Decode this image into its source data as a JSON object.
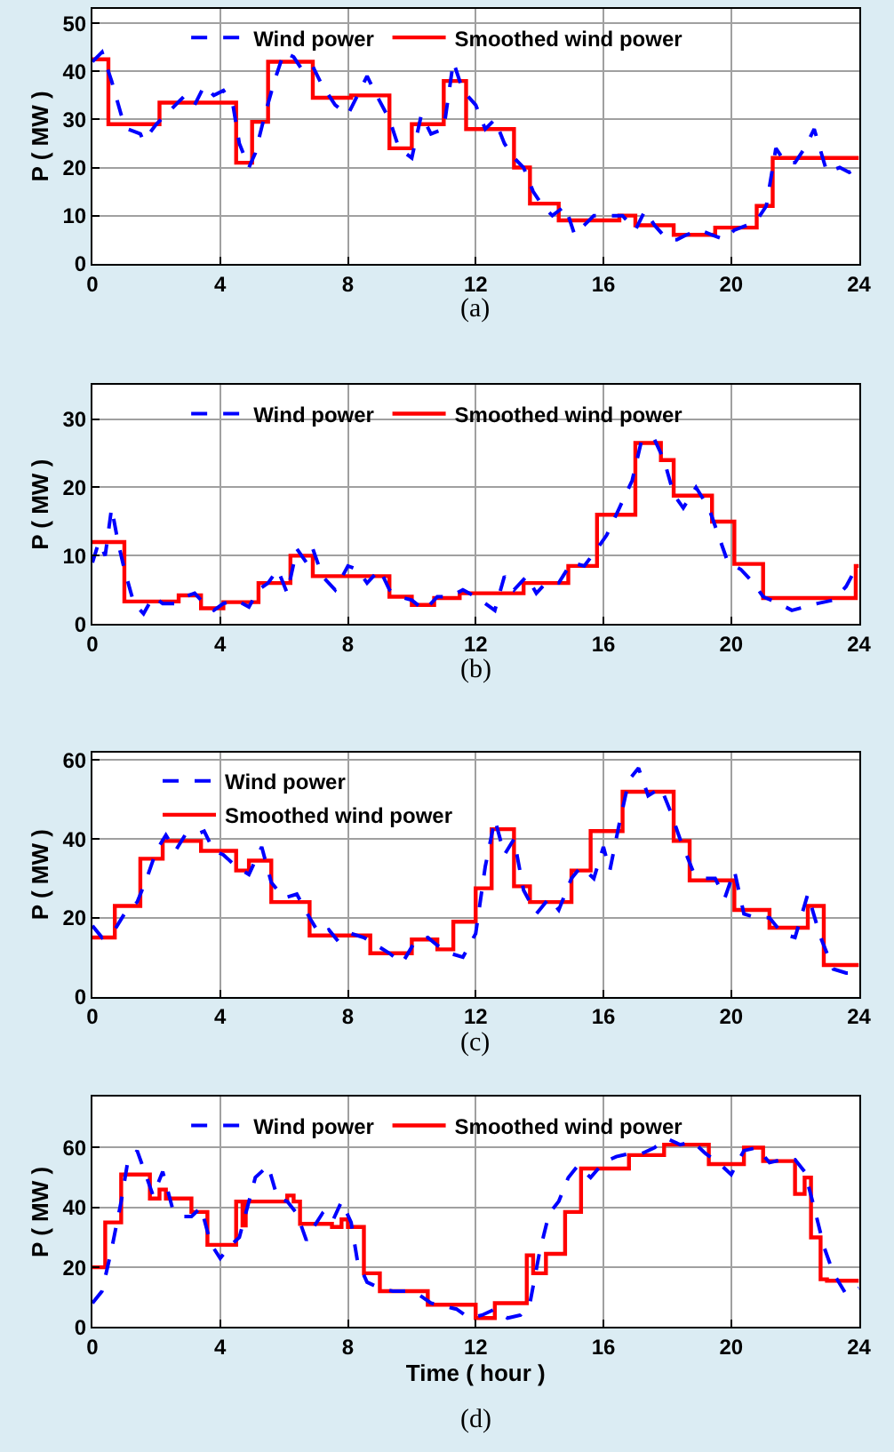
{
  "chart_data": [
    {
      "type": "line",
      "ylabel": "P ( MW )",
      "annotations": [
        "(a)"
      ],
      "xlim": [
        0,
        24
      ],
      "xticks": [
        0,
        4,
        8,
        12,
        16,
        20,
        24
      ],
      "ylim": [
        0,
        53
      ],
      "yticks": [
        0,
        10,
        20,
        30,
        40,
        50
      ],
      "grid": true,
      "legend": "top",
      "series": [
        {
          "name": "Wind power",
          "color": "#0000ff",
          "line_style": "dashed",
          "x": [
            0,
            0.3,
            0.6,
            0.9,
            1.1,
            1.5,
            1.6,
            2,
            2.3,
            2.6,
            2.9,
            3.2,
            3.5,
            3.8,
            4.1,
            4.4,
            4.6,
            4.9,
            5.1,
            5.4,
            5.7,
            6.0,
            6.3,
            6.6,
            6.9,
            7.2,
            7.6,
            8,
            8.3,
            8.6,
            8.9,
            9.3,
            9.6,
            10.0,
            10.3,
            10.6,
            11.0,
            11.3,
            11.6,
            12.0,
            12.3,
            12.6,
            12.9,
            13.2,
            13.5,
            13.8,
            14.1,
            14.4,
            14.8,
            15.1,
            15.4,
            15.7,
            16.0,
            16.3,
            16.6,
            17.0,
            17.3,
            17.6,
            18.0,
            18.3,
            18.6,
            19.0,
            19.4,
            19.8,
            20.1,
            20.5,
            20.8,
            21.1,
            21.4,
            21.7,
            22.0,
            22.3,
            22.6,
            23.0,
            23.4,
            23.7,
            24
          ],
          "values": [
            42,
            44,
            38,
            31,
            28,
            27,
            25.5,
            29,
            31,
            33,
            35,
            33,
            37,
            35,
            36,
            33,
            25,
            20,
            23,
            31,
            38,
            44,
            43,
            40,
            41,
            37,
            33,
            31,
            35,
            39,
            35,
            30,
            24,
            22,
            31,
            27,
            28,
            42,
            36,
            33,
            28,
            30,
            25,
            22,
            20,
            15,
            12,
            10,
            12,
            6,
            8,
            10,
            10,
            10,
            10,
            7,
            11,
            8,
            5,
            5,
            6,
            7,
            6,
            5,
            7,
            8,
            9,
            12,
            24,
            21,
            21,
            24,
            28,
            19,
            20,
            19,
            20
          ]
        },
        {
          "name": "Smoothed wind power",
          "color": "#ff0000",
          "type": "step",
          "line_style": "solid",
          "x": [
            0,
            0.5,
            2.1,
            4.5,
            5.0,
            5.5,
            6.9,
            8.1,
            9.3,
            10.0,
            11.0,
            11.7,
            13.2,
            13.7,
            14.6,
            16.5,
            17.0,
            18.2,
            19.5,
            20.8,
            21.3,
            24
          ],
          "values": [
            42.5,
            29,
            33.5,
            21,
            29.5,
            42,
            34.5,
            35,
            24,
            29,
            38,
            28,
            20,
            12.5,
            9,
            10,
            8,
            6,
            7.5,
            12,
            22,
            22
          ]
        }
      ]
    },
    {
      "type": "line",
      "ylabel": "P ( MW )",
      "annotations": [
        "(b)"
      ],
      "xlim": [
        0,
        24
      ],
      "xticks": [
        0,
        4,
        8,
        12,
        16,
        20,
        24
      ],
      "ylim": [
        0,
        35
      ],
      "yticks": [
        0,
        10,
        20,
        30
      ],
      "grid": true,
      "legend": "top",
      "series": [
        {
          "name": "Wind power",
          "color": "#0000ff",
          "line_style": "dashed",
          "x": [
            0,
            0.2,
            0.4,
            0.6,
            0.8,
            1.0,
            1.3,
            1.6,
            1.9,
            2.2,
            2.6,
            2.9,
            3.2,
            3.5,
            3.8,
            4.1,
            4.5,
            4.9,
            5.2,
            5.5,
            5.8,
            6.1,
            6.4,
            6.7,
            6.9,
            7.2,
            7.6,
            8.0,
            8.3,
            8.6,
            9.0,
            9.3,
            9.6,
            10.0,
            10.4,
            10.8,
            11.2,
            11.6,
            12.0,
            12.3,
            12.6,
            12.9,
            13.2,
            13.6,
            13.9,
            14.2,
            14.6,
            15.0,
            15.4,
            15.8,
            16.1,
            16.5,
            16.9,
            17.2,
            17.6,
            17.9,
            18.2,
            18.5,
            18.9,
            19.3,
            19.6,
            19.9,
            20.3,
            20.7,
            21.0,
            21.5,
            21.9,
            22.3,
            22.7,
            23.2,
            23.6,
            24
          ],
          "values": [
            9,
            12,
            10,
            17,
            12,
            8,
            3,
            1.5,
            4,
            3,
            3,
            4,
            4.5,
            3,
            2,
            3,
            3.5,
            2.5,
            5,
            6,
            8,
            4.5,
            11,
            9,
            11,
            7,
            5,
            8.5,
            8,
            6,
            8,
            5,
            4,
            3.5,
            2,
            4,
            4,
            5,
            4,
            3,
            2,
            7,
            5,
            7,
            4.5,
            6,
            6,
            9,
            8.5,
            11,
            13,
            17,
            21,
            27,
            27,
            24,
            19,
            17,
            20,
            17,
            13,
            9,
            8,
            6,
            4,
            3,
            2,
            2.5,
            3,
            3.5,
            5.5,
            9
          ]
        },
        {
          "name": "Smoothed wind power",
          "color": "#ff0000",
          "type": "step",
          "line_style": "solid",
          "x": [
            0,
            1.0,
            2.7,
            3.4,
            4.1,
            5.2,
            6.2,
            6.9,
            9.3,
            10.0,
            10.7,
            11.5,
            13.5,
            14.9,
            15.8,
            17.0,
            17.8,
            18.2,
            19.4,
            20.1,
            21.0,
            23.9,
            24
          ],
          "values": [
            12,
            3.3,
            4.2,
            2.3,
            3.2,
            6,
            10,
            7,
            4,
            2.8,
            3.8,
            4.5,
            6,
            8.5,
            16,
            26.5,
            24,
            18.8,
            15,
            8.8,
            3.8,
            8.5,
            8.5
          ]
        }
      ]
    },
    {
      "type": "line",
      "ylabel": "P ( MW )",
      "annotations": [
        "(c)"
      ],
      "xlim": [
        0,
        24
      ],
      "xticks": [
        0,
        4,
        8,
        12,
        16,
        20,
        24
      ],
      "ylim": [
        0,
        62
      ],
      "yticks": [
        0,
        20,
        40,
        60
      ],
      "grid": true,
      "legend": "top left",
      "series": [
        {
          "name": "Wind power",
          "color": "#0000ff",
          "line_style": "dashed",
          "x": [
            0,
            0.3,
            0.7,
            1.0,
            1.4,
            1.7,
            2.0,
            2.3,
            2.6,
            2.9,
            3.2,
            3.5,
            3.8,
            4.1,
            4.5,
            4.9,
            5.3,
            5.6,
            6.0,
            6.4,
            6.8,
            7.1,
            7.4,
            7.7,
            8.1,
            8.5,
            8.9,
            9.3,
            9.7,
            10.1,
            10.5,
            10.8,
            11.2,
            11.6,
            12.0,
            12.3,
            12.6,
            12.9,
            13.2,
            13.5,
            13.9,
            14.3,
            14.6,
            15.0,
            15.3,
            15.7,
            16.0,
            16.2,
            16.5,
            16.8,
            17.1,
            17.4,
            17.8,
            18.1,
            18.4,
            18.8,
            19.1,
            19.5,
            19.8,
            20.1,
            20.4,
            20.8,
            21.2,
            21.6,
            22.0,
            22.4,
            22.8,
            23.2,
            23.6,
            24
          ],
          "values": [
            18,
            15,
            17,
            21,
            24,
            30,
            37,
            41,
            37,
            41,
            41,
            42,
            37,
            36,
            33,
            31,
            38,
            29,
            25,
            26,
            20,
            16,
            17,
            14,
            16,
            15,
            13,
            11,
            8.5,
            14,
            15,
            13,
            11,
            10,
            16,
            33,
            45,
            36,
            40,
            27,
            21,
            25,
            22,
            30,
            33,
            30,
            38,
            32,
            44,
            55,
            58,
            51,
            53,
            47,
            40,
            32,
            30,
            30,
            25,
            32,
            21,
            20,
            20,
            16,
            15,
            26,
            15,
            7,
            6,
            6
          ]
        },
        {
          "name": "Smoothed wind power",
          "color": "#ff0000",
          "type": "step",
          "line_style": "solid",
          "x": [
            0,
            0.7,
            1.5,
            2.2,
            3.4,
            4.5,
            4.9,
            5.6,
            6.8,
            8.7,
            10.0,
            10.8,
            11.3,
            12.0,
            12.5,
            13.2,
            13.7,
            15.0,
            15.6,
            16.6,
            18.2,
            18.7,
            20.1,
            21.2,
            22.4,
            22.9,
            24
          ],
          "values": [
            15,
            23,
            35,
            39.5,
            37,
            32,
            34.5,
            24,
            15.5,
            11,
            14.5,
            12,
            19,
            27.5,
            42.5,
            28,
            24,
            32,
            42,
            52,
            39.5,
            29.5,
            22,
            17.5,
            23,
            8,
            8
          ]
        }
      ]
    },
    {
      "type": "line",
      "ylabel": "P ( MW )",
      "xlabel": "Time ( hour )",
      "annotations": [
        "(d)"
      ],
      "xlim": [
        0,
        24
      ],
      "xticks": [
        0,
        4,
        8,
        12,
        16,
        20,
        24
      ],
      "ylim": [
        0,
        77
      ],
      "yticks": [
        0,
        20,
        40,
        60
      ],
      "grid": true,
      "legend": "top",
      "series": [
        {
          "name": "Wind power",
          "color": "#0000ff",
          "line_style": "dashed",
          "x": [
            0,
            0.3,
            0.6,
            0.9,
            1.1,
            1.4,
            1.7,
            1.9,
            2.2,
            2.5,
            2.8,
            3.1,
            3.4,
            3.7,
            4.0,
            4.3,
            4.6,
            4.9,
            5.1,
            5.5,
            5.8,
            6.1,
            6.4,
            6.7,
            6.9,
            7.2,
            7.5,
            7.8,
            8.1,
            8.3,
            8.6,
            9.0,
            9.4,
            9.8,
            10.2,
            10.6,
            11.0,
            11.4,
            11.8,
            12.2,
            12.6,
            13.0,
            13.4,
            13.7,
            14.0,
            14.3,
            14.6,
            14.9,
            15.2,
            15.6,
            16.0,
            16.4,
            16.8,
            17.2,
            17.6,
            18.0,
            18.4,
            18.8,
            19.2,
            19.6,
            20.0,
            20.4,
            20.8,
            21.2,
            21.6,
            22.0,
            22.3,
            22.6,
            22.9,
            23.2,
            23.6,
            24
          ],
          "values": [
            8,
            12,
            26,
            42,
            55,
            59,
            50,
            44,
            52,
            40,
            37,
            37,
            40,
            28,
            23,
            27,
            30,
            42,
            50,
            54,
            43,
            42,
            38,
            29,
            33,
            38,
            35,
            42,
            35,
            22,
            15,
            13,
            12,
            12,
            11,
            8,
            7,
            6,
            3,
            4,
            6,
            3,
            4,
            8,
            25,
            38,
            42,
            50,
            54,
            50,
            55,
            57,
            58,
            58,
            60,
            63,
            61,
            62,
            58,
            55,
            51,
            59,
            60,
            55,
            56,
            56,
            52,
            40,
            27,
            18,
            11,
            13
          ]
        },
        {
          "name": "Smoothed wind power",
          "color": "#ff0000",
          "type": "step",
          "line_style": "solid",
          "x": [
            0,
            0.4,
            0.9,
            1.8,
            2.1,
            2.3,
            3.1,
            3.6,
            4.5,
            4.7,
            4.8,
            6.1,
            6.3,
            6.5,
            7.5,
            7.8,
            8.0,
            8.5,
            9.0,
            10.5,
            12.0,
            12.6,
            13.6,
            13.8,
            14.2,
            14.8,
            15.3,
            16.8,
            17.9,
            19.3,
            20.4,
            21.0,
            22.0,
            22.3,
            22.5,
            22.8,
            23.0,
            24
          ],
          "values": [
            20,
            35,
            51,
            43,
            46,
            43,
            38.5,
            27.5,
            42,
            34,
            42,
            44,
            42,
            34.5,
            33.5,
            36,
            33.5,
            18,
            12,
            7.5,
            3,
            8,
            24,
            18,
            24.5,
            38.5,
            53,
            57.5,
            61,
            54.5,
            60,
            55.5,
            44.5,
            50,
            30,
            16,
            15.5,
            15.5
          ]
        }
      ]
    }
  ]
}
